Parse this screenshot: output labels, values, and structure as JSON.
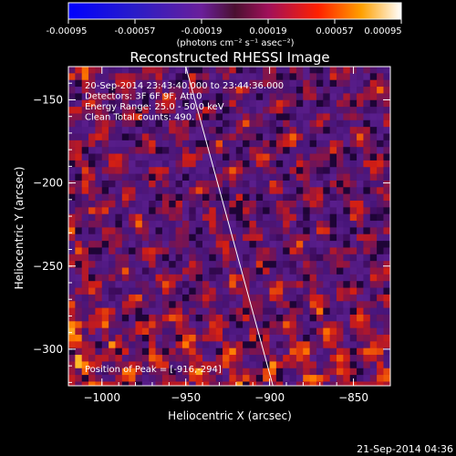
{
  "colorbar": {
    "tick_labels": [
      "-0.00095",
      "-0.00057",
      "-0.00019",
      "0.00019",
      "0.00057",
      "0.00095"
    ],
    "units": "(photons cm⁻² s⁻¹ asec⁻²)",
    "range": [
      -0.00095,
      0.00095
    ]
  },
  "chart_data": {
    "type": "heatmap",
    "title": "Reconstructed RHESSI Image",
    "xlabel": "Heliocentric X (arcsec)",
    "ylabel": "Heliocentric Y (arcsec)",
    "xlim": [
      -1020,
      -828
    ],
    "ylim": [
      -322,
      -130
    ],
    "x_ticks": [
      -1000,
      -950,
      -900,
      -850
    ],
    "y_ticks": [
      -300,
      -250,
      -200,
      -150
    ],
    "annotations": [
      "20-Sep-2014 23:43:40.000 to 23:44:36.000",
      "Detectors: 3F 6F 9F, Att 0",
      "Energy Range: 25.0 - 50.0 keV",
      "Clean    Total counts: 490."
    ],
    "peak_label": "Position of Peak = [-916,-294]",
    "peak": [
      -916,
      -294
    ],
    "limb_line": [
      [
        -950,
        -130
      ],
      [
        -898,
        -322
      ]
    ],
    "footer": "21-Sep-2014 04:36"
  }
}
